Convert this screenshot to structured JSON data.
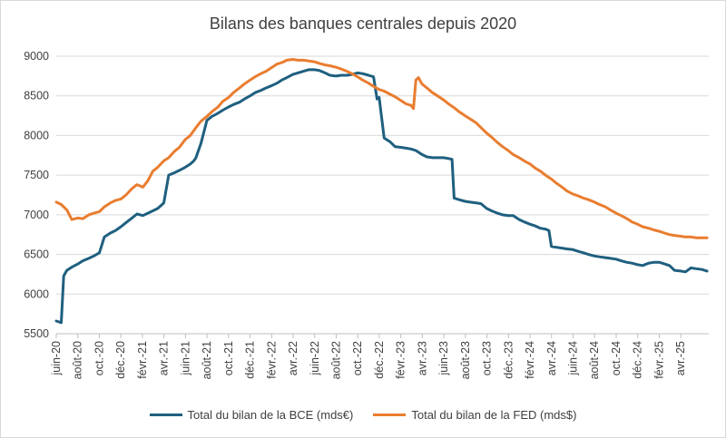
{
  "chart_data": {
    "type": "line",
    "title": "Bilans des banques centrales depuis 2020",
    "xlabel": "",
    "ylabel": "",
    "ylim": [
      5500,
      9000
    ],
    "yticks": [
      5500,
      6000,
      6500,
      7000,
      7500,
      8000,
      8500,
      9000
    ],
    "xlim": [
      "2020-06-01",
      "2025-06-20"
    ],
    "xticks": [
      "juin-20",
      "août-20",
      "oct.-20",
      "déc.-20",
      "févr.-21",
      "avr.-21",
      "juin-21",
      "août-21",
      "oct.-21",
      "déc.-21",
      "févr.-22",
      "avr.-22",
      "juin-22",
      "août-22",
      "oct.-22",
      "déc.-22",
      "févr.-23",
      "avr.-23",
      "juin-23",
      "août-23",
      "oct.-23",
      "déc.-23",
      "févr.-24",
      "avr.-24",
      "juin-24",
      "août-24",
      "oct.-24",
      "déc.-24",
      "févr.-25",
      "avr.-25"
    ],
    "grid": true,
    "legend": "bottom",
    "series": [
      {
        "name": "Total du bilan de la BCE (mds€)",
        "color": "#1f5f7f",
        "x": [
          "2020-06-01",
          "2020-06-15",
          "2020-06-22",
          "2020-07-01",
          "2020-07-15",
          "2020-08-01",
          "2020-08-15",
          "2020-09-01",
          "2020-09-15",
          "2020-10-01",
          "2020-10-15",
          "2020-11-01",
          "2020-11-15",
          "2020-12-01",
          "2020-12-15",
          "2021-01-01",
          "2021-01-15",
          "2021-02-01",
          "2021-02-15",
          "2021-03-01",
          "2021-03-15",
          "2021-03-25",
          "2021-04-01",
          "2021-04-15",
          "2021-05-01",
          "2021-05-15",
          "2021-06-01",
          "2021-06-15",
          "2021-06-25",
          "2021-07-01",
          "2021-07-15",
          "2021-08-01",
          "2021-08-15",
          "2021-09-01",
          "2021-09-15",
          "2021-10-01",
          "2021-10-15",
          "2021-11-01",
          "2021-11-15",
          "2021-12-01",
          "2021-12-15",
          "2022-01-01",
          "2022-01-15",
          "2022-02-01",
          "2022-02-15",
          "2022-03-01",
          "2022-03-15",
          "2022-04-01",
          "2022-04-15",
          "2022-05-01",
          "2022-05-15",
          "2022-06-01",
          "2022-06-15",
          "2022-07-01",
          "2022-07-15",
          "2022-08-01",
          "2022-08-15",
          "2022-09-01",
          "2022-09-15",
          "2022-10-01",
          "2022-10-15",
          "2022-11-01",
          "2022-11-15",
          "2022-11-25",
          "2022-12-01",
          "2022-12-15",
          "2022-12-25",
          "2023-01-01",
          "2023-01-15",
          "2023-02-01",
          "2023-02-15",
          "2023-03-01",
          "2023-03-15",
          "2023-04-01",
          "2023-04-15",
          "2023-05-01",
          "2023-05-15",
          "2023-06-01",
          "2023-06-15",
          "2023-06-25",
          "2023-07-01",
          "2023-07-15",
          "2023-08-01",
          "2023-08-15",
          "2023-09-01",
          "2023-09-15",
          "2023-10-01",
          "2023-10-15",
          "2023-11-01",
          "2023-11-15",
          "2023-12-01",
          "2023-12-15",
          "2024-01-01",
          "2024-01-15",
          "2024-02-01",
          "2024-02-15",
          "2024-03-01",
          "2024-03-15",
          "2024-03-25",
          "2024-04-01",
          "2024-04-15",
          "2024-05-01",
          "2024-05-15",
          "2024-06-01",
          "2024-06-15",
          "2024-07-01",
          "2024-07-15",
          "2024-08-01",
          "2024-08-15",
          "2024-09-01",
          "2024-09-15",
          "2024-10-01",
          "2024-10-15",
          "2024-11-01",
          "2024-11-15",
          "2024-12-01",
          "2024-12-15",
          "2025-01-01",
          "2025-01-15",
          "2025-02-01",
          "2025-02-15",
          "2025-03-01",
          "2025-03-15",
          "2025-04-01",
          "2025-04-15",
          "2025-05-01",
          "2025-05-15",
          "2025-06-01",
          "2025-06-15"
        ],
        "y": [
          5660,
          5640,
          6230,
          6300,
          6340,
          6380,
          6420,
          6450,
          6480,
          6520,
          6720,
          6770,
          6800,
          6850,
          6900,
          6960,
          7010,
          6990,
          7020,
          7050,
          7080,
          7120,
          7150,
          7500,
          7530,
          7560,
          7600,
          7640,
          7680,
          7720,
          7900,
          8190,
          8240,
          8280,
          8320,
          8360,
          8390,
          8420,
          8460,
          8500,
          8540,
          8570,
          8600,
          8630,
          8660,
          8700,
          8730,
          8770,
          8790,
          8810,
          8830,
          8830,
          8820,
          8790,
          8760,
          8750,
          8760,
          8760,
          8770,
          8790,
          8780,
          8760,
          8740,
          8460,
          8480,
          7970,
          7940,
          7920,
          7860,
          7850,
          7840,
          7830,
          7810,
          7760,
          7730,
          7720,
          7720,
          7720,
          7710,
          7700,
          7210,
          7190,
          7170,
          7160,
          7150,
          7140,
          7080,
          7050,
          7020,
          7000,
          6990,
          6990,
          6940,
          6910,
          6880,
          6860,
          6830,
          6820,
          6800,
          6600,
          6590,
          6580,
          6570,
          6560,
          6540,
          6520,
          6500,
          6480,
          6470,
          6460,
          6450,
          6440,
          6420,
          6400,
          6390,
          6370,
          6360,
          6390,
          6400,
          6400,
          6380,
          6360,
          6300,
          6290,
          6280,
          6330,
          6320,
          6310,
          6290
        ]
      },
      {
        "name": "Total du bilan de la FED (mds$)",
        "color": "#e97d30",
        "x": [
          "2020-06-01",
          "2020-06-15",
          "2020-07-01",
          "2020-07-15",
          "2020-08-01",
          "2020-08-15",
          "2020-09-01",
          "2020-09-15",
          "2020-10-01",
          "2020-10-15",
          "2020-11-01",
          "2020-11-15",
          "2020-12-01",
          "2020-12-15",
          "2021-01-01",
          "2021-01-15",
          "2021-02-01",
          "2021-02-15",
          "2021-03-01",
          "2021-03-15",
          "2021-04-01",
          "2021-04-15",
          "2021-05-01",
          "2021-05-15",
          "2021-06-01",
          "2021-06-15",
          "2021-07-01",
          "2021-07-15",
          "2021-08-01",
          "2021-08-15",
          "2021-09-01",
          "2021-09-15",
          "2021-10-01",
          "2021-10-15",
          "2021-11-01",
          "2021-11-15",
          "2021-12-01",
          "2021-12-15",
          "2022-01-01",
          "2022-01-15",
          "2022-02-01",
          "2022-02-15",
          "2022-03-01",
          "2022-03-15",
          "2022-04-01",
          "2022-04-15",
          "2022-05-01",
          "2022-05-15",
          "2022-06-01",
          "2022-06-15",
          "2022-07-01",
          "2022-07-15",
          "2022-08-01",
          "2022-08-15",
          "2022-09-01",
          "2022-09-15",
          "2022-10-01",
          "2022-10-15",
          "2022-11-01",
          "2022-11-15",
          "2022-12-01",
          "2022-12-15",
          "2023-01-01",
          "2023-01-15",
          "2023-02-01",
          "2023-02-15",
          "2023-03-01",
          "2023-03-08",
          "2023-03-15",
          "2023-03-22",
          "2023-04-01",
          "2023-04-15",
          "2023-05-01",
          "2023-05-15",
          "2023-06-01",
          "2023-06-15",
          "2023-07-01",
          "2023-07-15",
          "2023-08-01",
          "2023-08-15",
          "2023-09-01",
          "2023-09-15",
          "2023-10-01",
          "2023-10-15",
          "2023-11-01",
          "2023-11-15",
          "2023-12-01",
          "2023-12-15",
          "2024-01-01",
          "2024-01-15",
          "2024-02-01",
          "2024-02-15",
          "2024-03-01",
          "2024-03-15",
          "2024-04-01",
          "2024-04-15",
          "2024-05-01",
          "2024-05-15",
          "2024-06-01",
          "2024-06-15",
          "2024-07-01",
          "2024-07-15",
          "2024-08-01",
          "2024-08-15",
          "2024-09-01",
          "2024-09-15",
          "2024-10-01",
          "2024-10-15",
          "2024-11-01",
          "2024-11-15",
          "2024-12-01",
          "2024-12-15",
          "2025-01-01",
          "2025-01-15",
          "2025-02-01",
          "2025-02-15",
          "2025-03-01",
          "2025-03-15",
          "2025-04-01",
          "2025-04-15",
          "2025-05-01",
          "2025-05-15",
          "2025-06-01",
          "2025-06-15"
        ],
        "y": [
          7160,
          7130,
          7060,
          6940,
          6960,
          6950,
          7000,
          7020,
          7040,
          7100,
          7150,
          7180,
          7200,
          7250,
          7330,
          7380,
          7350,
          7430,
          7550,
          7600,
          7680,
          7720,
          7800,
          7850,
          7950,
          8000,
          8100,
          8180,
          8240,
          8300,
          8360,
          8430,
          8480,
          8540,
          8600,
          8650,
          8700,
          8740,
          8780,
          8810,
          8860,
          8900,
          8920,
          8950,
          8960,
          8950,
          8950,
          8940,
          8930,
          8910,
          8890,
          8880,
          8860,
          8840,
          8810,
          8780,
          8740,
          8700,
          8660,
          8620,
          8580,
          8560,
          8520,
          8490,
          8440,
          8400,
          8380,
          8340,
          8700,
          8730,
          8650,
          8600,
          8540,
          8500,
          8450,
          8400,
          8350,
          8300,
          8250,
          8210,
          8160,
          8100,
          8030,
          7980,
          7910,
          7860,
          7810,
          7760,
          7720,
          7680,
          7640,
          7590,
          7550,
          7500,
          7450,
          7400,
          7350,
          7300,
          7260,
          7240,
          7210,
          7190,
          7160,
          7130,
          7100,
          7060,
          7020,
          6990,
          6950,
          6910,
          6880,
          6850,
          6830,
          6810,
          6790,
          6770,
          6750,
          6740,
          6730,
          6720,
          6720,
          6710,
          6710,
          6710
        ]
      }
    ]
  }
}
